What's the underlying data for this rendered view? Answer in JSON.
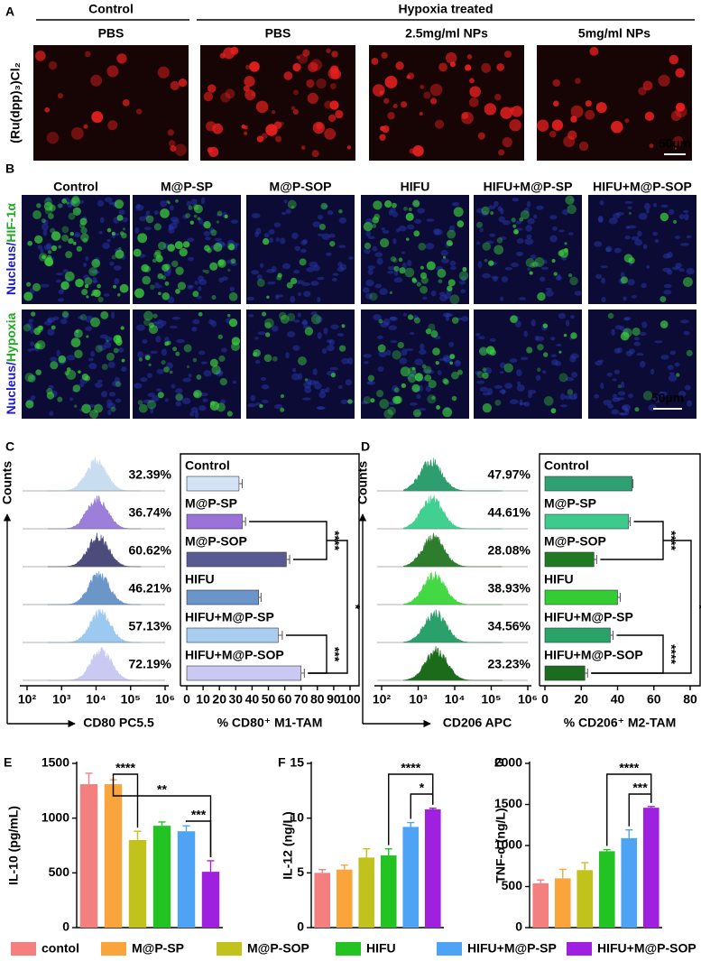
{
  "panel_a": {
    "letter": "A",
    "group_labels": [
      "Control",
      "Hypoxia treated"
    ],
    "column_labels": [
      "PBS",
      "PBS",
      "2.5mg/ml NPs",
      "5mg/ml NPs"
    ],
    "row_label": "(Ru(dpp)₃)Cl₂",
    "scale_bar": "50µm"
  },
  "panel_b": {
    "letter": "B",
    "column_labels": [
      "Control",
      "M@P-SP",
      "M@P-SOP",
      "HIFU",
      "HIFU+M@P-SP",
      "HIFU+M@P-SOP"
    ],
    "row_labels": [
      {
        "stain": "Nucleus/",
        "marker": "HIF-1α"
      },
      {
        "stain": "Nucleus/",
        "marker": "Hypoxia"
      }
    ],
    "scale_bar": "50µm"
  },
  "chart_data": [
    {
      "type": "hbar",
      "letter": "C",
      "categories": [
        "Control",
        "M@P-SP",
        "M@P-SOP",
        "HIFU",
        "HIFU+M@P-SP",
        "HIFU+M@P-SOP"
      ],
      "values": [
        32,
        34,
        61,
        44,
        56,
        70
      ],
      "errors": [
        2,
        2,
        2,
        1.5,
        2.5,
        2
      ],
      "colors": [
        "#d4e4f6",
        "#9a72d8",
        "#5a5a92",
        "#6b94c9",
        "#a8cdf1",
        "#c9c9f3"
      ],
      "xlim": [
        0,
        100
      ],
      "xticks": [
        0,
        10,
        20,
        30,
        40,
        50,
        60,
        70,
        80,
        90,
        100
      ],
      "xlabel": "% CD80⁺ M1-TAM",
      "annotations": [
        "****",
        "*",
        "***"
      ],
      "histograms": {
        "values": [
          32.39,
          36.74,
          60.62,
          46.21,
          57.13,
          72.19
        ],
        "value_labels": [
          "32.39%",
          "36.74%",
          "60.62%",
          "46.21%",
          "57.13%",
          "72.19%"
        ],
        "label_colors": [
          "#000000",
          "#000000",
          "#000000",
          "#000000",
          "#000000",
          "#000000"
        ],
        "colors": [
          "#c9ddf0",
          "#9b7fd8",
          "#4c4c7c",
          "#6a96c8",
          "#9bc9f0",
          "#c9c9f1"
        ],
        "xscale": "log",
        "xlim": [
          100,
          1000000
        ],
        "xticks": [
          {
            "value": 100,
            "label": "10²"
          },
          {
            "value": 1000,
            "label": "10³"
          },
          {
            "value": 10000,
            "label": "10⁴"
          },
          {
            "value": 100000,
            "label": "10⁵"
          },
          {
            "value": 1000000,
            "label": "10⁶"
          }
        ],
        "xlabel": "CD80 PC5.5",
        "ylabel": "Counts"
      }
    },
    {
      "type": "hbar",
      "letter": "D",
      "categories": [
        "Control",
        "M@P-SP",
        "M@P-SOP",
        "HIFU",
        "HIFU+M@P-SP",
        "HIFU+M@P-SOP"
      ],
      "values": [
        48,
        46,
        27,
        40,
        36,
        22
      ],
      "errors": [
        0.5,
        1,
        1.5,
        1.5,
        1.5,
        1.5
      ],
      "colors": [
        "#2fa072",
        "#3dcb8d",
        "#1f7a22",
        "#33cc33",
        "#2aa36b",
        "#1d6b1f"
      ],
      "xlim": [
        0,
        80
      ],
      "xticks": [
        0,
        20,
        40,
        60,
        80
      ],
      "xlabel": "% CD206⁺ M2-TAM",
      "annotations": [
        "****",
        "*",
        "****"
      ],
      "histograms": {
        "values": [
          47.97,
          44.61,
          28.08,
          38.93,
          34.56,
          23.23
        ],
        "value_labels": [
          "47.97%",
          "44.61%",
          "28.08%",
          "38.93%",
          "34.56%",
          "23.23%"
        ],
        "label_colors": [
          "#000000",
          "#5a3a1a",
          "#000000",
          "#2a5a1a",
          "#000000",
          "#000000"
        ],
        "colors": [
          "#2e9e6e",
          "#40d090",
          "#2d7d2d",
          "#45d845",
          "#2aa06a",
          "#1b6b1b"
        ],
        "xscale": "log",
        "xlim": [
          100,
          1000000
        ],
        "xticks": [
          {
            "value": 100,
            "label": "10²"
          },
          {
            "value": 1000,
            "label": "10³"
          },
          {
            "value": 10000,
            "label": "10⁴"
          },
          {
            "value": 100000,
            "label": "10⁵"
          },
          {
            "value": 1000000,
            "label": "10⁶"
          }
        ],
        "xlabel": "CD206 APC",
        "ylabel": "Counts"
      }
    },
    {
      "type": "bar",
      "letter": "E",
      "ylabel": "IL-10 (pg/mL)",
      "values": [
        1310,
        1310,
        800,
        930,
        880,
        510
      ],
      "errors": [
        100,
        40,
        80,
        35,
        50,
        100
      ],
      "ylim": [
        0,
        1500
      ],
      "yticks": [
        0,
        500,
        1000,
        1500
      ],
      "annotations": [
        "****",
        "**",
        "***"
      ]
    },
    {
      "type": "bar",
      "letter": "F",
      "ylabel": "IL-12 (ng/L)",
      "values": [
        5.0,
        5.3,
        6.4,
        6.6,
        9.2,
        10.8
      ],
      "errors": [
        0.3,
        0.4,
        0.8,
        0.6,
        0.4,
        0.1
      ],
      "ylim": [
        0,
        15
      ],
      "yticks": [
        0,
        5,
        10,
        15
      ],
      "annotations": [
        "****",
        "*"
      ]
    },
    {
      "type": "bar",
      "letter": "G",
      "ylabel": "TNF-α (ng/L)",
      "values": [
        540,
        600,
        700,
        930,
        1090,
        1460
      ],
      "errors": [
        40,
        110,
        90,
        20,
        100,
        15
      ],
      "ylim": [
        0,
        2000
      ],
      "yticks": [
        0,
        500,
        1000,
        1500,
        2000
      ],
      "annotations": [
        "****",
        "***"
      ]
    }
  ],
  "legend": {
    "labels": [
      "contol",
      "M@P-SP",
      "M@P-SOP",
      "HIFU",
      "HIFU+M@P-SP",
      "HIFU+M@P-SOP"
    ],
    "colors": [
      "#f47f7f",
      "#f9a53c",
      "#c2c21c",
      "#22c322",
      "#4ea3f5",
      "#a020e0"
    ]
  }
}
